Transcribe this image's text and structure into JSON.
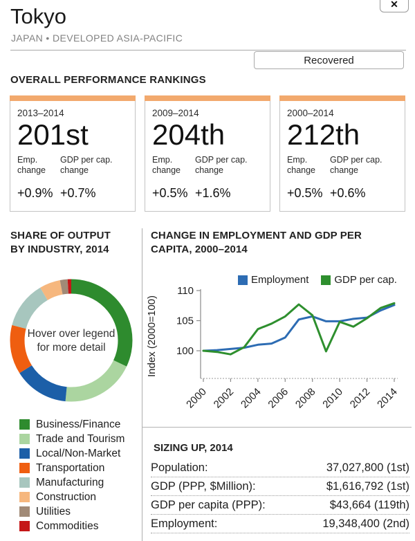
{
  "header": {
    "title": "Tokyo",
    "subtitle": "JAPAN • DEVELOPED ASIA-PACIFIC",
    "close_label": "✕",
    "status_label": "Recovered"
  },
  "rankings": {
    "heading": "OVERALL PERFORMANCE RANKINGS",
    "cards": [
      {
        "period": "2013–2014",
        "rank": "201st",
        "emp_label": "Emp. change",
        "gdp_label": "GDP per cap. change",
        "emp_value": "+0.9%",
        "gdp_value": "+0.7%"
      },
      {
        "period": "2009–2014",
        "rank": "204th",
        "emp_label": "Emp. change",
        "gdp_label": "GDP per cap. change",
        "emp_value": "+0.5%",
        "gdp_value": "+1.6%"
      },
      {
        "period": "2000–2014",
        "rank": "212th",
        "emp_label": "Emp. change",
        "gdp_label": "GDP per cap. change",
        "emp_value": "+0.5%",
        "gdp_value": "+0.6%"
      }
    ]
  },
  "industry": {
    "heading_line1": "SHARE OF OUTPUT",
    "heading_line2": "BY INDUSTRY, 2014",
    "center_line1": "Hover over legend",
    "center_line2": "for more detail"
  },
  "chart_heading": {
    "line1": "CHANGE IN EMPLOYMENT AND GDP PER",
    "line2": "CAPITA, 2000–2014"
  },
  "sizing": {
    "heading": "SIZING UP, 2014",
    "rows": [
      {
        "label": "Population:",
        "value": "37,027,800 (1st)"
      },
      {
        "label": "GDP (PPP, $Million):",
        "value": "$1,616,792 (1st)"
      },
      {
        "label": "GDP per capita (PPP):",
        "value": "$43,664 (119th)"
      },
      {
        "label": "Employment:",
        "value": "19,348,400 (2nd)"
      }
    ]
  },
  "chart_data": [
    {
      "type": "pie",
      "subtype": "donut",
      "title": "SHARE OF OUTPUT BY INDUSTRY, 2014",
      "center_text": "Hover over legend for more detail",
      "slices": [
        {
          "label": "Business/Finance",
          "value": 32,
          "color": "#2e8b2e"
        },
        {
          "label": "Trade and Tourism",
          "value": 19.5,
          "color": "#abd5a0"
        },
        {
          "label": "Local/Non-Market",
          "value": 14.5,
          "color": "#1c5fa8"
        },
        {
          "label": "Transportation",
          "value": 13,
          "color": "#ef5e10"
        },
        {
          "label": "Manufacturing",
          "value": 12.5,
          "color": "#a7c6be"
        },
        {
          "label": "Construction",
          "value": 5.5,
          "color": "#f6b77e"
        },
        {
          "label": "Utilities",
          "value": 2,
          "color": "#a18a77"
        },
        {
          "label": "Commodities",
          "value": 1,
          "color": "#c51718"
        }
      ]
    },
    {
      "type": "line",
      "title": "CHANGE IN EMPLOYMENT AND GDP PER CAPITA, 2000–2014",
      "ylabel": "Index (2000=100)",
      "ylim": [
        95,
        110
      ],
      "yticks": [
        100,
        105,
        110
      ],
      "xticks": [
        2000,
        2002,
        2004,
        2006,
        2008,
        2010,
        2012,
        2014
      ],
      "x": [
        2000,
        2001,
        2002,
        2003,
        2004,
        2005,
        2006,
        2007,
        2008,
        2009,
        2010,
        2011,
        2012,
        2013,
        2014
      ],
      "legend_position": "top",
      "series": [
        {
          "name": "Employment",
          "color": "#2d6cb3",
          "values": [
            100,
            100.1,
            100.3,
            100.5,
            101.0,
            101.2,
            102.2,
            105.2,
            105.7,
            104.9,
            104.9,
            105.3,
            105.5,
            106.7,
            107.6
          ]
        },
        {
          "name": "GDP per cap.",
          "color": "#2e8f2e",
          "values": [
            100,
            99.8,
            99.4,
            100.6,
            103.6,
            104.5,
            105.7,
            107.7,
            105.9,
            99.9,
            104.8,
            104.0,
            105.4,
            107.1,
            107.9
          ]
        }
      ]
    }
  ]
}
